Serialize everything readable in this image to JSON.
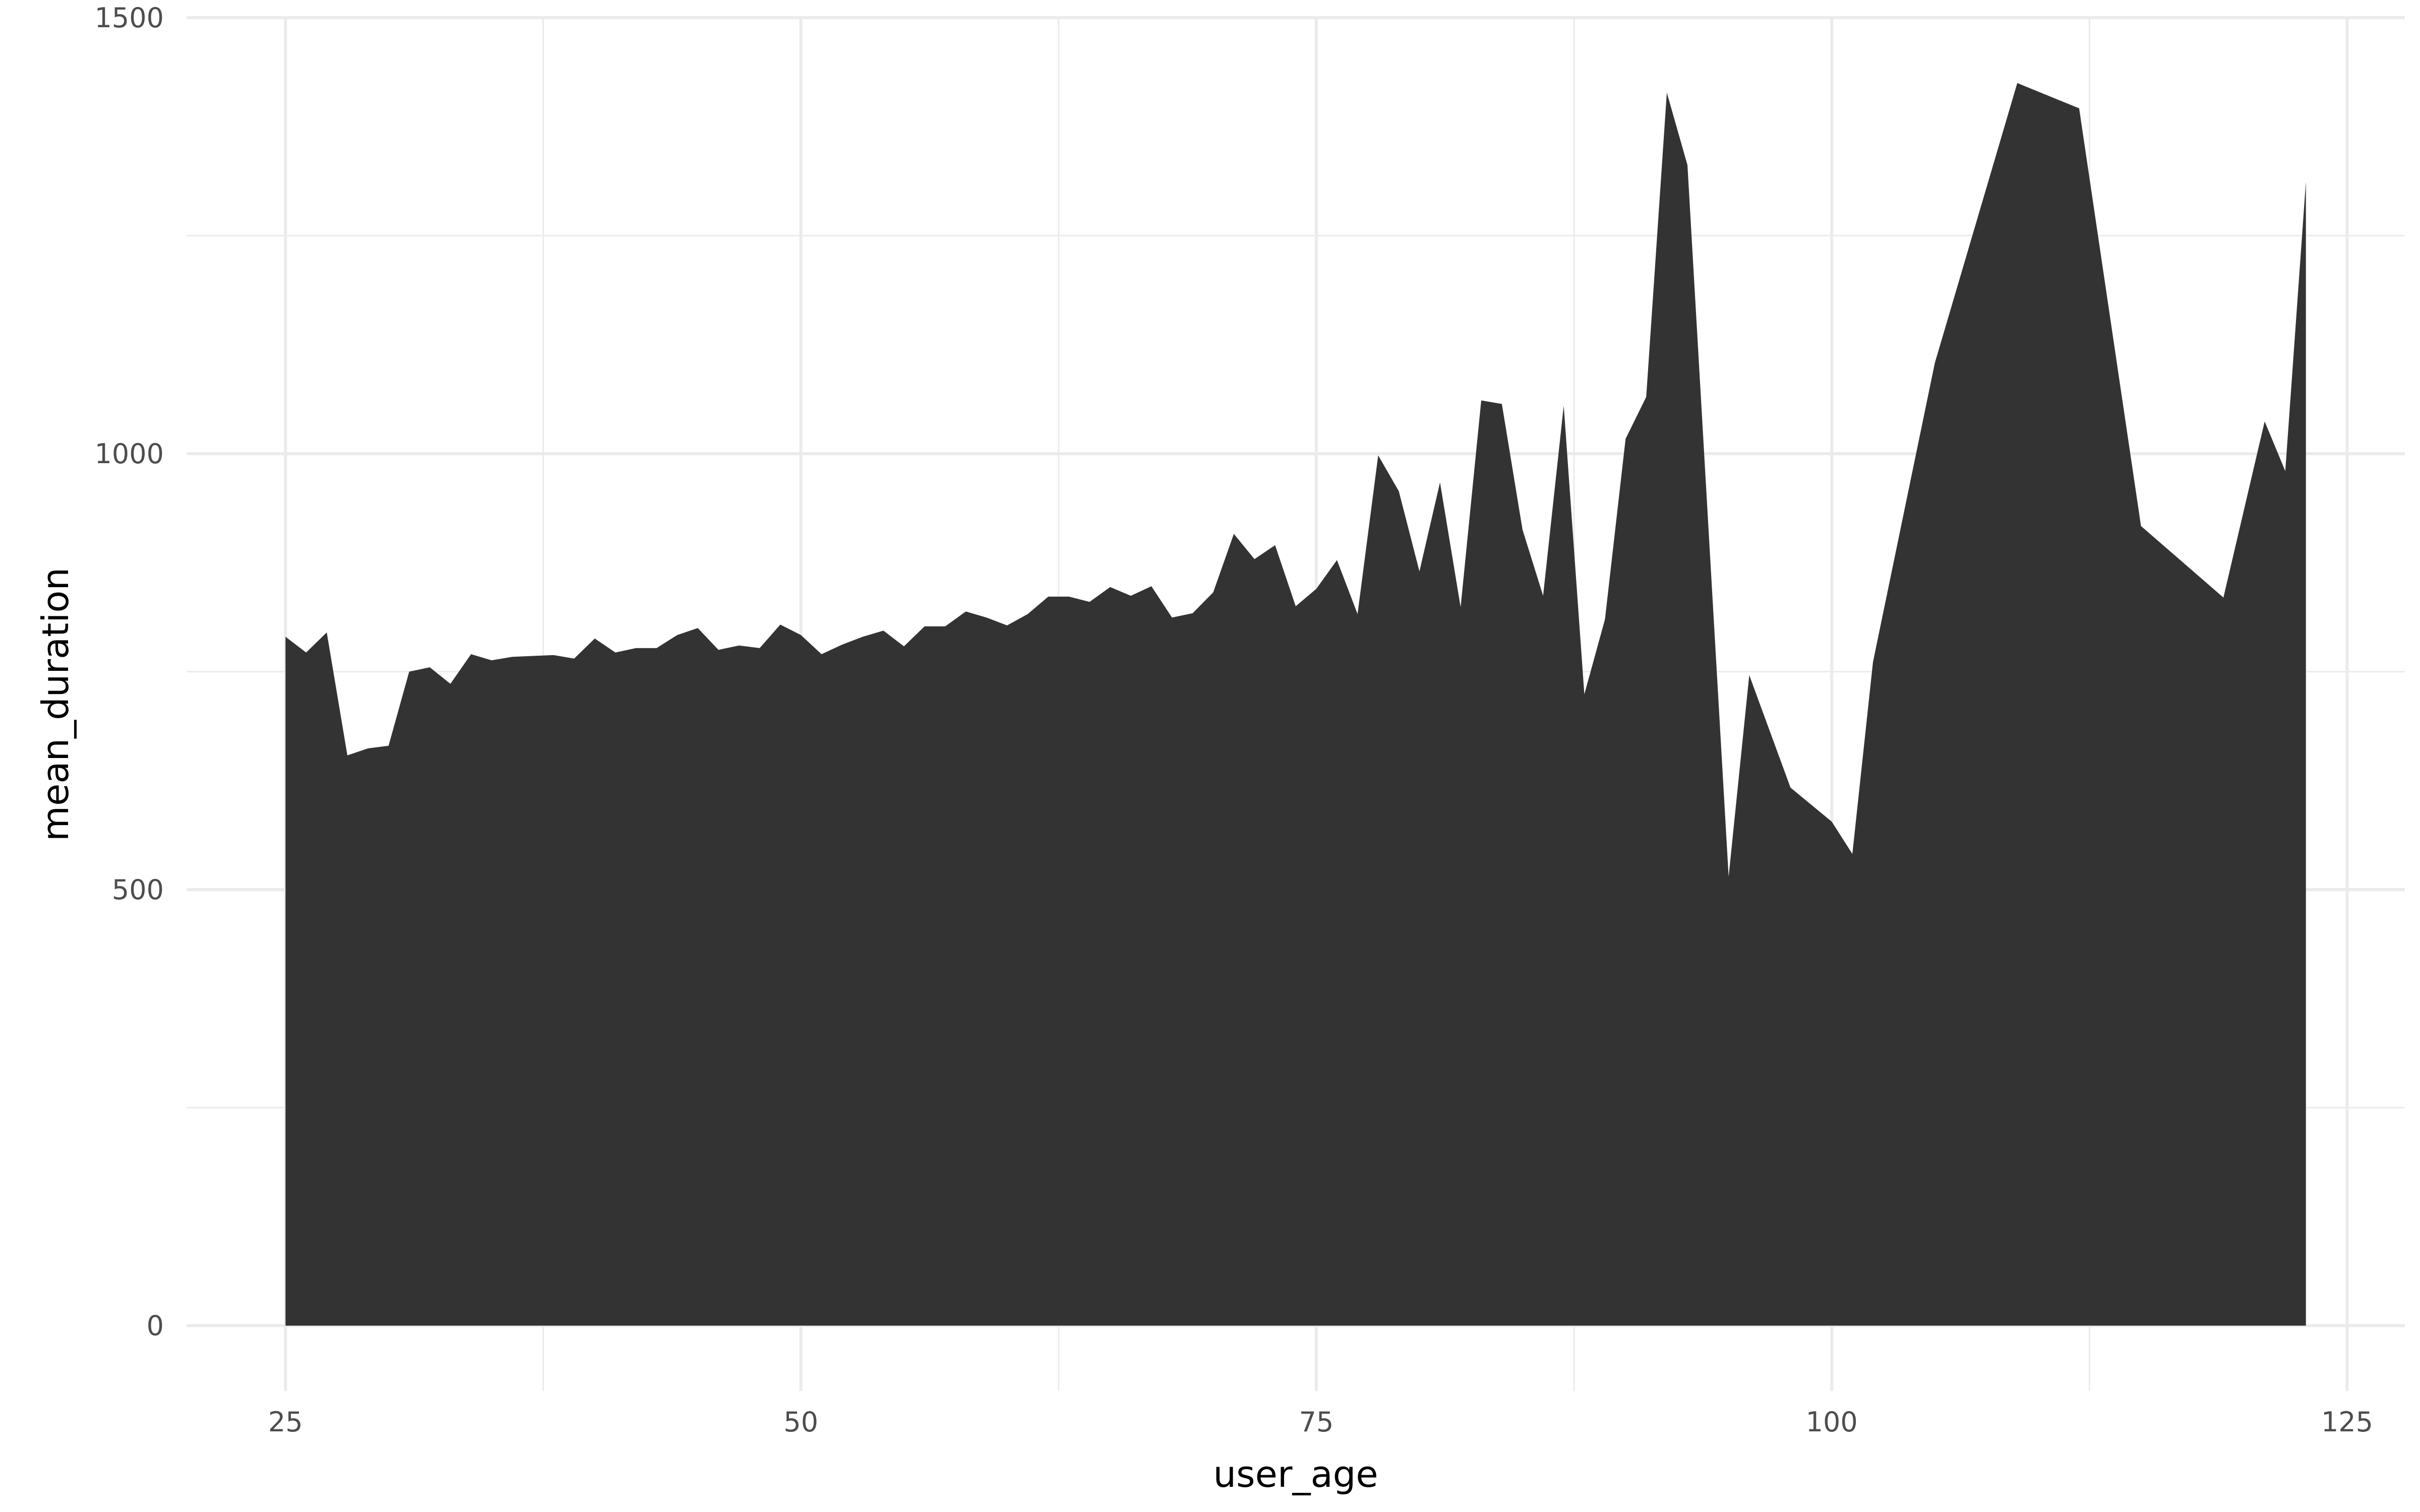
{
  "chart_data": {
    "type": "area",
    "title": "",
    "xlabel": "user_age",
    "ylabel": "mean_duration",
    "xlim": [
      20.2,
      127.8
    ],
    "ylim": [
      -75,
      1500
    ],
    "x_ticks": [
      25,
      50,
      75,
      100,
      125
    ],
    "x_tick_labels": [
      "25",
      "50",
      "75",
      "100",
      "125"
    ],
    "x_minor_ticks": [
      37.5,
      62.5,
      87.5,
      112.5
    ],
    "y_ticks": [
      0,
      500,
      1000,
      1500
    ],
    "y_tick_labels": [
      "0",
      "500",
      "1000",
      "1500"
    ],
    "y_minor_ticks": [
      250,
      750,
      1250
    ],
    "grid": true,
    "legend": "none",
    "fill_color": "#333333",
    "grid_color": "#ebebeb",
    "series": [
      {
        "x": [
          25,
          26,
          27,
          28,
          29,
          30,
          31,
          32,
          33,
          34,
          35,
          36,
          37,
          38,
          39,
          40,
          41,
          42,
          43,
          44,
          45,
          46,
          47,
          48,
          49,
          50,
          51,
          52,
          53,
          54,
          55,
          56,
          57,
          58,
          59,
          60,
          61,
          62,
          63,
          64,
          65,
          66,
          67,
          68,
          69,
          70,
          71,
          72,
          73,
          74,
          75,
          76,
          77,
          78,
          79,
          80,
          81,
          82,
          83,
          84,
          85,
          86,
          87,
          88,
          89,
          90,
          91,
          92,
          93,
          95,
          96,
          98,
          100,
          101,
          102,
          105,
          109,
          112,
          115,
          119,
          121,
          122,
          123
        ],
        "y": [
          790,
          772,
          795,
          654,
          662,
          665,
          750,
          755,
          736,
          770,
          763,
          767,
          768,
          769,
          765,
          788,
          772,
          777,
          777,
          792,
          800,
          775,
          780,
          777,
          804,
          792,
          770,
          781,
          790,
          797,
          779,
          802,
          802,
          819,
          812,
          803,
          816,
          836,
          836,
          830,
          847,
          837,
          848,
          812,
          817,
          841,
          908,
          879,
          895,
          825,
          845,
          878,
          816,
          998,
          957,
          865,
          967,
          824,
          1061,
          1057,
          913,
          837,
          1055,
          724,
          810,
          1017,
          1065,
          1414,
          1331,
          515,
          746,
          617,
          578,
          541,
          761,
          1104,
          1425,
          1396,
          917,
          835,
          1037,
          980,
          1312
        ]
      }
    ]
  }
}
